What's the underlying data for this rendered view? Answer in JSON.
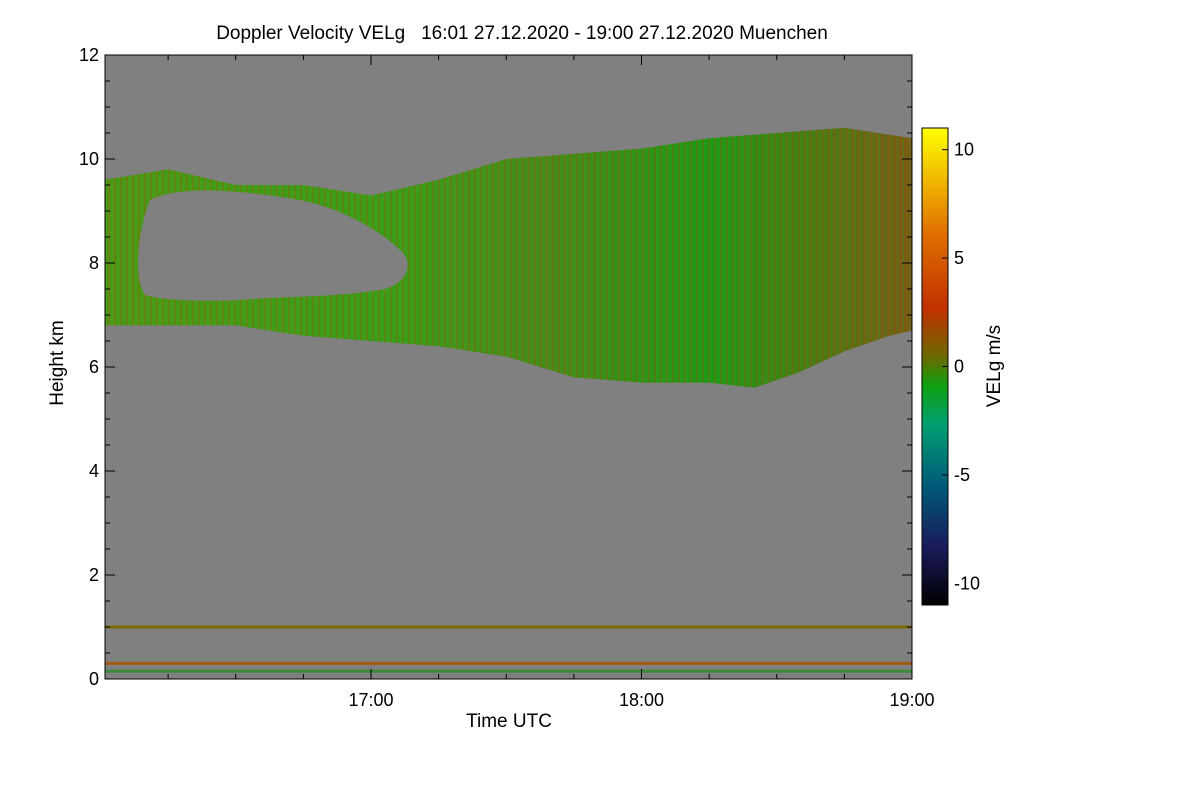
{
  "chart_data": {
    "type": "heatmap",
    "title": "Doppler Velocity VELg   16:01 27.12.2020 - 19:00 27.12.2020 Muenchen",
    "xlabel": "Time UTC",
    "ylabel": "Height km",
    "colorbar_label": "VELg m/s",
    "x_ticks": [
      "17:00",
      "18:00",
      "19:00"
    ],
    "y_ticks": [
      "0",
      "2",
      "4",
      "6",
      "8",
      "10",
      "12"
    ],
    "colorbar_ticks": [
      "10",
      "5",
      "0",
      "-5",
      "-10"
    ],
    "xlim": [
      "16:01",
      "19:00"
    ],
    "ylim": [
      0,
      12
    ],
    "clim": [
      -11,
      11
    ],
    "background_color": "#808080",
    "colormap": [
      "#000000",
      "#1a1a5a",
      "#005a78",
      "#00a070",
      "#10a010",
      "#6a6a00",
      "#c03000",
      "#e07000",
      "#ffff00"
    ],
    "cloud_base_km": [
      {
        "t": "16:01",
        "h": 6.8
      },
      {
        "t": "16:20",
        "h": 6.8
      },
      {
        "t": "16:30",
        "h": 6.8
      },
      {
        "t": "16:45",
        "h": 6.6
      },
      {
        "t": "17:00",
        "h": 6.5
      },
      {
        "t": "17:15",
        "h": 6.4
      },
      {
        "t": "17:30",
        "h": 6.2
      },
      {
        "t": "17:45",
        "h": 5.8
      },
      {
        "t": "18:00",
        "h": 5.7
      },
      {
        "t": "18:15",
        "h": 5.7
      },
      {
        "t": "18:25",
        "h": 5.6
      },
      {
        "t": "18:35",
        "h": 5.9
      },
      {
        "t": "18:45",
        "h": 6.3
      },
      {
        "t": "18:55",
        "h": 6.6
      },
      {
        "t": "19:00",
        "h": 6.7
      }
    ],
    "cloud_top_km": [
      {
        "t": "16:01",
        "h": 9.6
      },
      {
        "t": "16:15",
        "h": 9.8
      },
      {
        "t": "16:30",
        "h": 9.5
      },
      {
        "t": "16:45",
        "h": 9.5
      },
      {
        "t": "17:00",
        "h": 9.3
      },
      {
        "t": "17:15",
        "h": 9.6
      },
      {
        "t": "17:30",
        "h": 10.0
      },
      {
        "t": "17:45",
        "h": 10.1
      },
      {
        "t": "18:00",
        "h": 10.2
      },
      {
        "t": "18:15",
        "h": 10.4
      },
      {
        "t": "18:30",
        "h": 10.5
      },
      {
        "t": "18:45",
        "h": 10.6
      },
      {
        "t": "19:00",
        "h": 10.4
      }
    ],
    "ground_clutter_lines_km": [
      1.0,
      0.3,
      0.15
    ]
  }
}
